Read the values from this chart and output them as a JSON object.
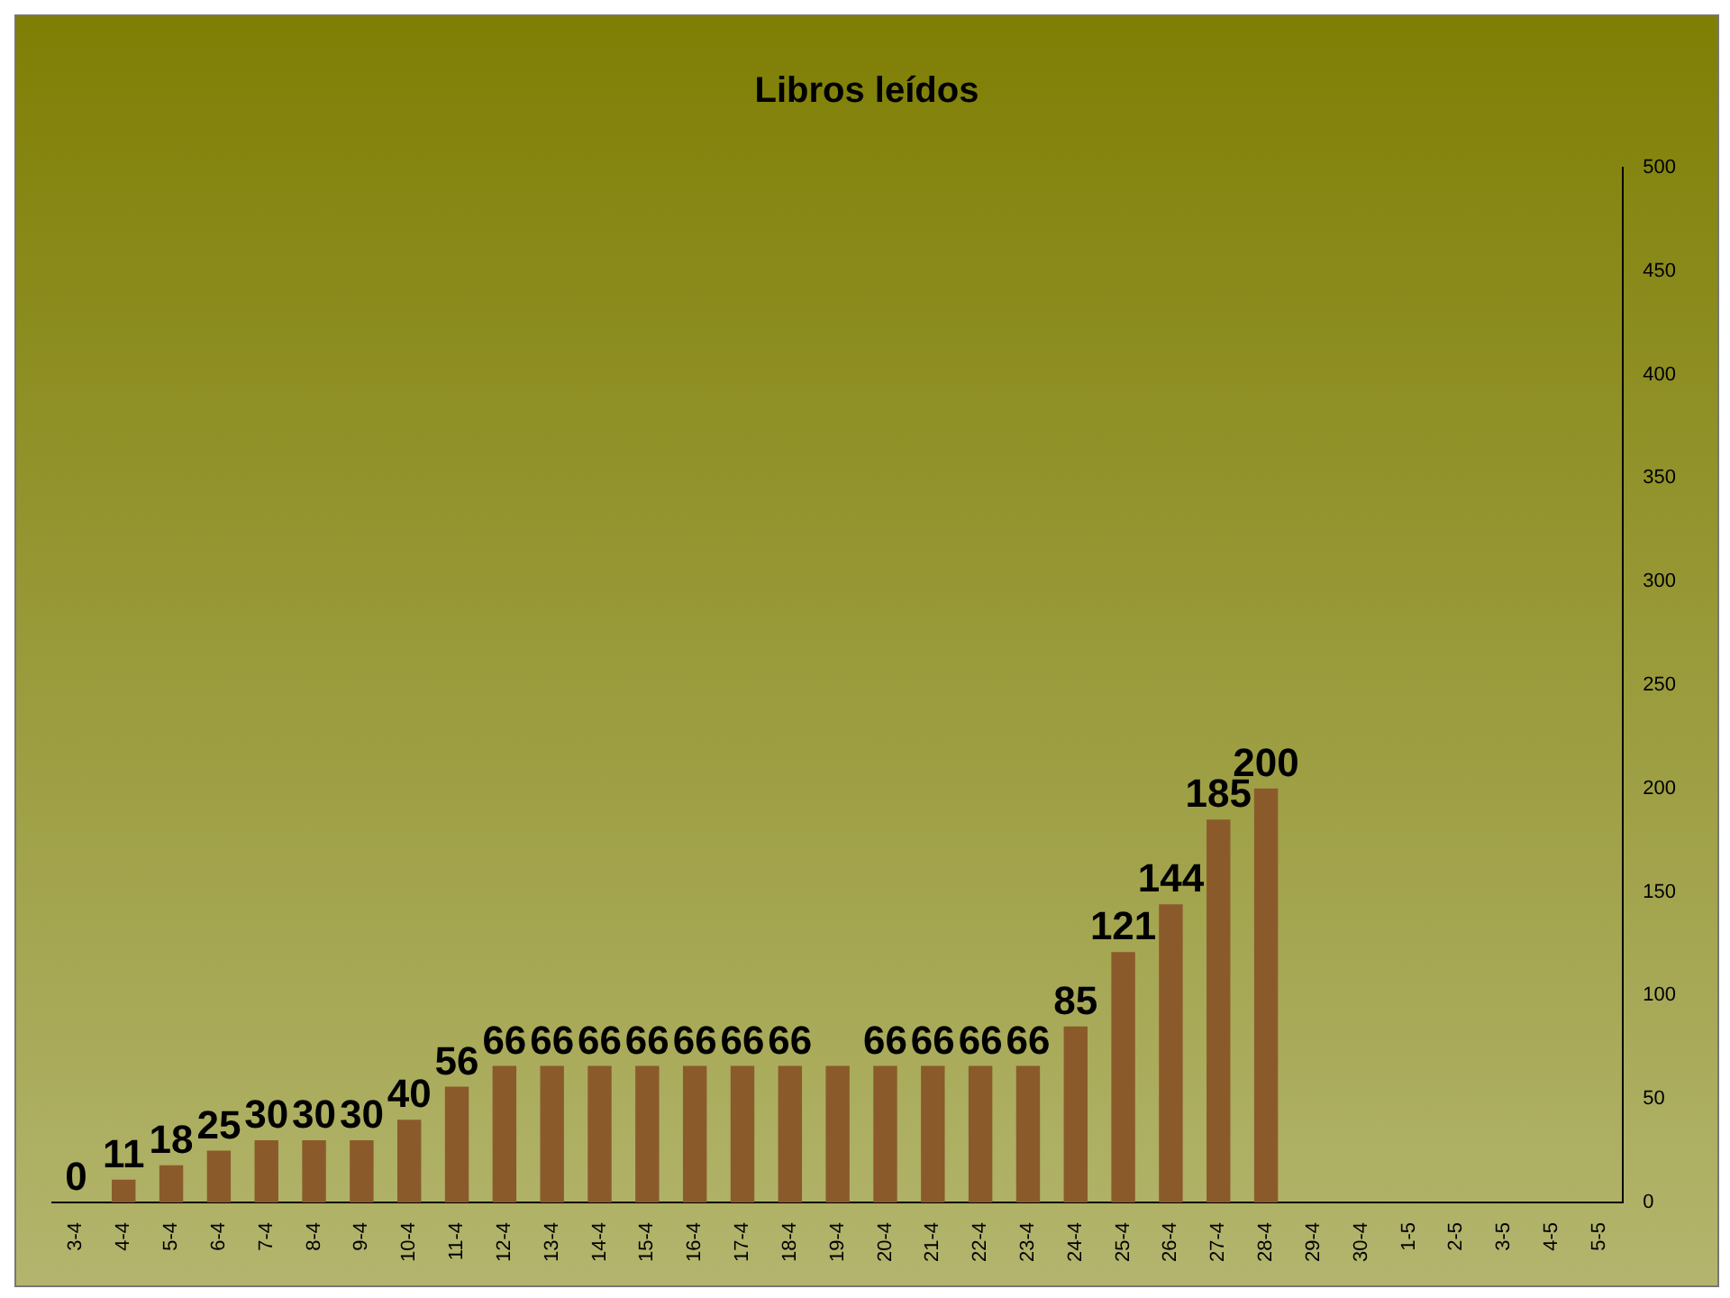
{
  "chart_data": {
    "type": "bar",
    "title": "Libros leídos",
    "categories": [
      "3-4",
      "4-4",
      "5-4",
      "6-4",
      "7-4",
      "8-4",
      "9-4",
      "10-4",
      "11-4",
      "12-4",
      "13-4",
      "14-4",
      "15-4",
      "16-4",
      "17-4",
      "18-4",
      "19-4",
      "20-4",
      "21-4",
      "22-4",
      "23-4",
      "24-4",
      "25-4",
      "26-4",
      "27-4",
      "28-4",
      "29-4",
      "30-4",
      "1-5",
      "2-5",
      "3-5",
      "4-5",
      "5-5"
    ],
    "values": [
      0,
      11,
      18,
      25,
      30,
      30,
      30,
      40,
      56,
      66,
      66,
      66,
      66,
      66,
      66,
      66,
      66,
      66,
      66,
      66,
      66,
      85,
      121,
      144,
      185,
      200,
      null,
      null,
      null,
      null,
      null,
      null,
      null
    ],
    "value_labels": [
      "0",
      "11",
      "18",
      "25",
      "30",
      "30",
      "30",
      "40",
      "56",
      "66",
      "66",
      "66",
      "66",
      "66",
      "66",
      "66",
      null,
      "66",
      "66",
      "66",
      "66",
      "85",
      "121",
      "144",
      "185",
      "200",
      null,
      null,
      null,
      null,
      null,
      null,
      null
    ],
    "color": "#8b5a2b",
    "ylim": [
      0,
      500
    ],
    "yticks": [
      0,
      50,
      100,
      150,
      200,
      250,
      300,
      350,
      400,
      450,
      500
    ],
    "grid": false,
    "legend": false
  }
}
